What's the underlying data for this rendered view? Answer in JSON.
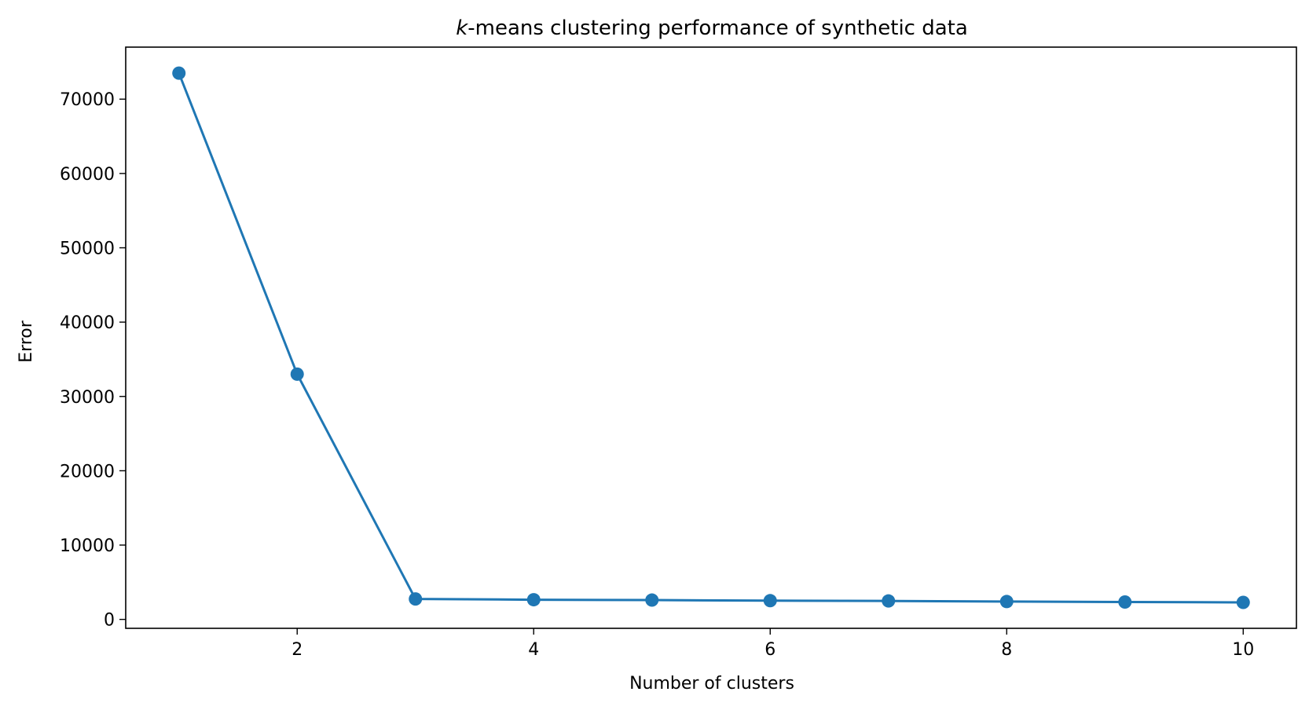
{
  "chart_data": {
    "type": "line",
    "title_italic_prefix": "k",
    "title_rest": "-means clustering performance of synthetic data",
    "xlabel": "Number of clusters",
    "ylabel": "Error",
    "xlim": [
      0.55,
      10.45
    ],
    "ylim": [
      -1200,
      77000
    ],
    "xticks": [
      2,
      4,
      6,
      8,
      10
    ],
    "yticks": [
      0,
      10000,
      20000,
      30000,
      40000,
      50000,
      60000,
      70000
    ],
    "grid": false,
    "legend": "none",
    "series": [
      {
        "color": "#1f77b4",
        "marker": "circle",
        "x": [
          1,
          2,
          3,
          4,
          5,
          6,
          7,
          8,
          9,
          10
        ],
        "y": [
          73500,
          33000,
          2750,
          2650,
          2600,
          2520,
          2480,
          2400,
          2340,
          2290
        ]
      }
    ]
  }
}
